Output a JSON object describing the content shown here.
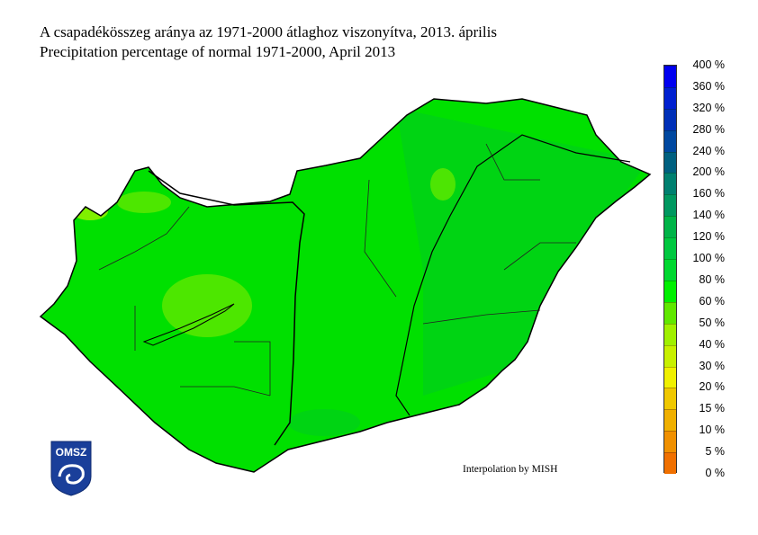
{
  "title_hu": "A csapadékösszeg aránya az 1971-2000 átlaghoz viszonyítva, 2013. április",
  "title_en": "Precipitation percentage of normal 1971-2000, April 2013",
  "credit": "Interpolation by MISH",
  "logo_text": "OMSZ",
  "map_fill_color": "#00e000",
  "chart_data": {
    "type": "heatmap",
    "region": "Hungary",
    "legend": {
      "placement": "right",
      "labels": [
        "0 %",
        "5 %",
        "10 %",
        "15 %",
        "20 %",
        "30 %",
        "40 %",
        "50 %",
        "60 %",
        "80 %",
        "100 %",
        "120 %",
        "140 %",
        "160 %",
        "200 %",
        "240 %",
        "280 %",
        "320 %",
        "360 %",
        "400 %"
      ],
      "colors": [
        "#f07000",
        "#f09000",
        "#f0b000",
        "#f0c800",
        "#f0f000",
        "#c8f000",
        "#a0f000",
        "#60e800",
        "#00f000",
        "#00d830",
        "#00c840",
        "#00b448",
        "#009860",
        "#008070",
        "#006080",
        "#0048a0",
        "#0030b8",
        "#0020d0",
        "#0000f0"
      ]
    }
  }
}
